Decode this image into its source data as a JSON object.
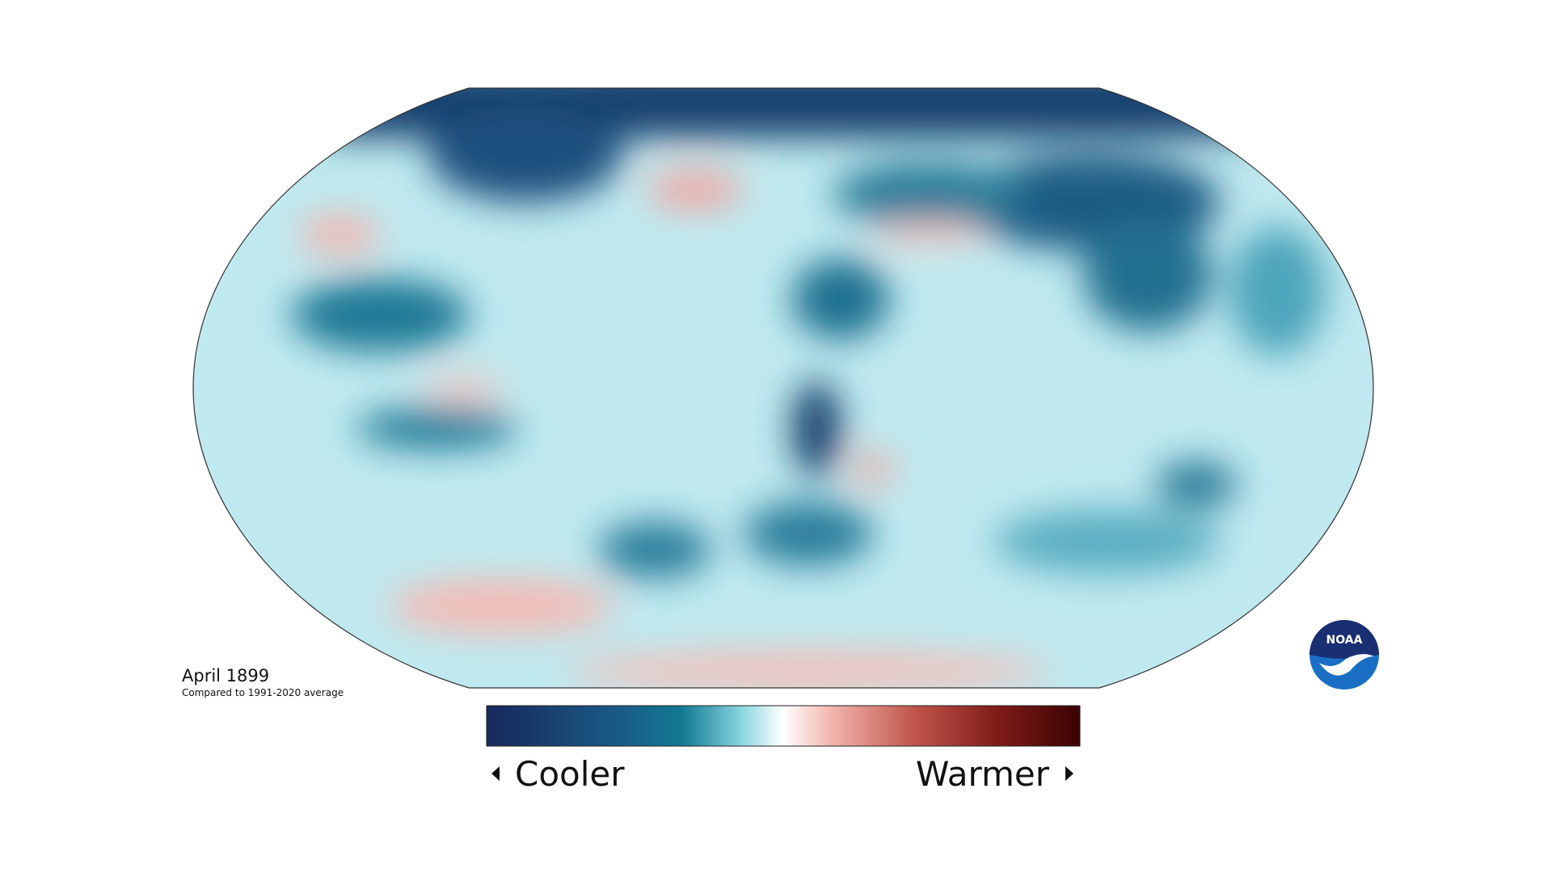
{
  "title": "April 1899",
  "subtitle": "Compared to 1991-2020 average",
  "legend": {
    "low_label": "Cooler",
    "high_label": "Warmer"
  },
  "logo": {
    "text": "NOAA"
  }
}
